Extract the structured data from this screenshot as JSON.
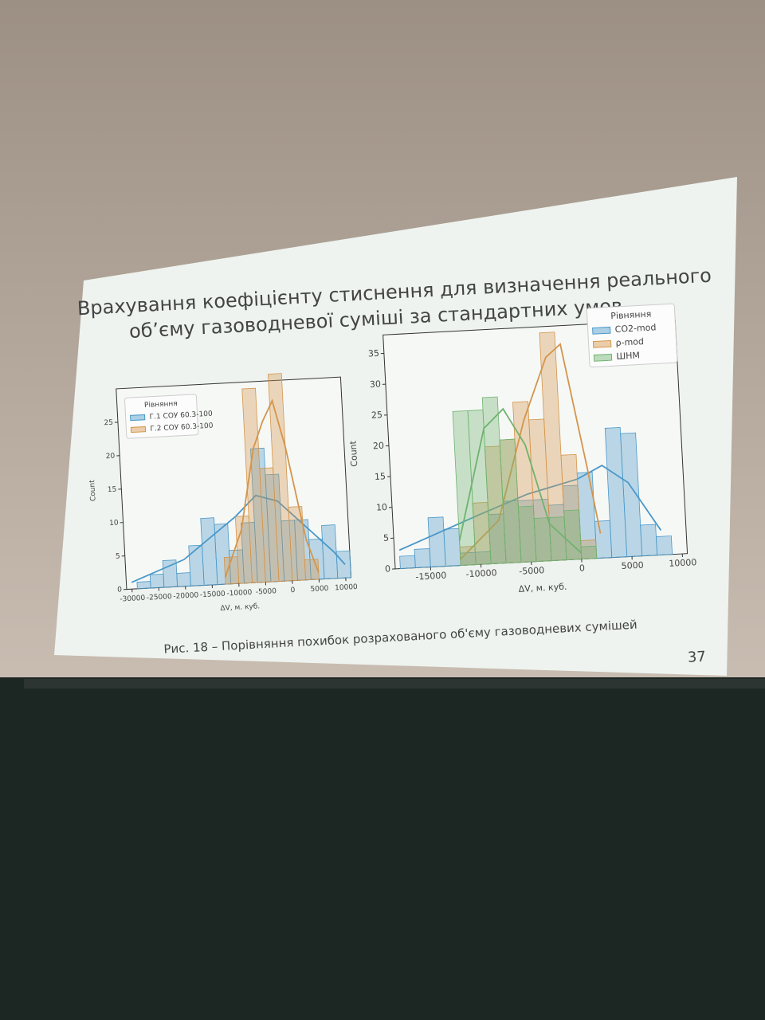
{
  "slide": {
    "title_lines": [
      "Врахування коефіцієнту стиснення для визначення реального",
      "об’єму газоводневої суміші за стандартних умов"
    ],
    "caption": "Рис. 18 – Порівняння похибок розрахованого об'єму газоводневих сумішей",
    "page_number": 37
  },
  "chart_data": [
    {
      "type": "histogram",
      "x_label": "ΔV, м. куб.",
      "y_label": "Count",
      "legend_title": "Рівняння",
      "legend": "upper left",
      "xlim": [
        -31000,
        11000
      ],
      "xticks": [
        -30000,
        -25000,
        -20000,
        -15000,
        -10000,
        -5000,
        0,
        5000,
        10000
      ],
      "ylim": [
        0,
        30
      ],
      "yticks": [
        0,
        5,
        10,
        15,
        20,
        25
      ],
      "series": [
        {
          "name": "Г.1 СОУ 60.3-100",
          "color": "#4a98c9",
          "bins": [
            -29000,
            -26500,
            -24000,
            -21500,
            -19000,
            -16500,
            -14000,
            -11500,
            -9000,
            -6500,
            -4000,
            -1500,
            1000,
            3500,
            6000,
            8500,
            11000
          ],
          "values": [
            1,
            2,
            4,
            2,
            6,
            10,
            9,
            5,
            9,
            20,
            16,
            9,
            9,
            6,
            8,
            4
          ],
          "kde": {
            "x": [
              -30000,
              -20000,
              -15000,
              -10000,
              -6000,
              -2000,
              3000,
              8000,
              10000
            ],
            "y": [
              1,
              4,
              7,
              10,
              13,
              12,
              8,
              4,
              2
            ]
          }
        },
        {
          "name": "Г.2 СОУ 60.3-100",
          "color": "#d4954a",
          "bins": [
            -12500,
            -10000,
            -7500,
            -5000,
            -2500,
            0,
            2500,
            5000
          ],
          "values": [
            4,
            10,
            29,
            17,
            31,
            11,
            3
          ],
          "kde": {
            "x": [
              -12500,
              -9000,
              -6000,
              -4000,
              -2000,
              0,
              3000,
              5000
            ],
            "y": [
              1,
              8,
              20,
              24,
              27,
              20,
              6,
              1
            ]
          }
        }
      ]
    },
    {
      "type": "histogram",
      "x_label": "ΔV, м. куб.",
      "y_label": "Count",
      "legend_title": "Рівняння",
      "legend": "upper right",
      "xlim": [
        -18500,
        10500
      ],
      "xticks": [
        -15000,
        -10000,
        -5000,
        0,
        5000,
        10000
      ],
      "ylim": [
        0,
        38
      ],
      "yticks": [
        0,
        5,
        10,
        15,
        20,
        25,
        30,
        35
      ],
      "series": [
        {
          "name": "CO2-mod",
          "color": "#4a98c9",
          "bins": [
            -18000,
            -16500,
            -15000,
            -13500,
            -12000,
            -10500,
            -9000,
            -7500,
            -6000,
            -4500,
            -3000,
            -1500,
            0,
            1500,
            3000,
            4500,
            6000,
            7500,
            9000
          ],
          "values": [
            2,
            3,
            8,
            6,
            2,
            2,
            8,
            10,
            10,
            10,
            9,
            12,
            14,
            6,
            21,
            20,
            5,
            3
          ],
          "kde": {
            "x": [
              -18000,
              -10000,
              -5000,
              0,
              2500,
              5000,
              8000
            ],
            "y": [
              3,
              8,
              11,
              13,
              15,
              12,
              4
            ]
          }
        },
        {
          "name": "ρ-mod",
          "color": "#d4954a",
          "bins": [
            -12000,
            -10500,
            -9000,
            -7500,
            -6000,
            -4500,
            -3000,
            -1500,
            0,
            1500
          ],
          "values": [
            3,
            10,
            19,
            20,
            26,
            23,
            37,
            17,
            3
          ],
          "kde": {
            "x": [
              -12000,
              -8000,
              -5000,
              -2500,
              -1000,
              1000,
              2000
            ],
            "y": [
              1,
              7,
              23,
              33,
              35,
              15,
              4
            ]
          }
        },
        {
          "name": "ШНМ",
          "color": "#6fb36f",
          "bins": [
            -12000,
            -10500,
            -9000,
            -7500,
            -6000,
            -4500,
            -3000,
            -1500,
            0,
            1500
          ],
          "values": [
            25,
            25,
            27,
            20,
            9,
            7,
            7,
            8,
            2
          ],
          "kde": {
            "x": [
              -12000,
              -9000,
              -7000,
              -5000,
              -3000,
              0
            ],
            "y": [
              4,
              22,
              25,
              19,
              6,
              1
            ]
          }
        }
      ]
    }
  ]
}
